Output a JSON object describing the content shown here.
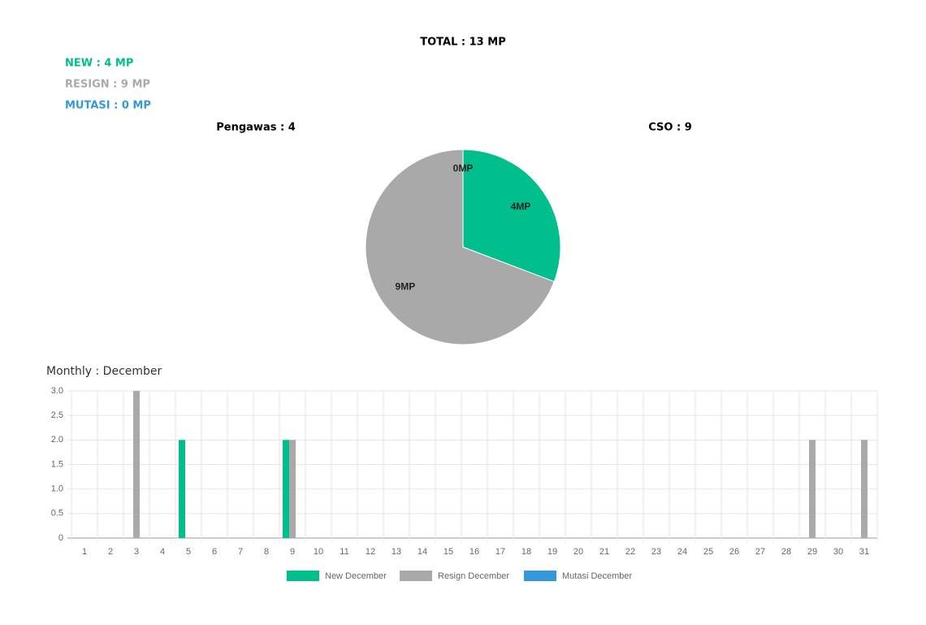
{
  "header": {
    "total": "TOTAL : 13 MP",
    "new": "NEW : 4 MP",
    "resign": "RESIGN : 9 MP",
    "mutasi": "MUTASI : 0 MP",
    "pengawas": "Pengawas : 4",
    "cso": "CSO : 9"
  },
  "chart_data": [
    {
      "type": "pie",
      "values": [
        4,
        9,
        0
      ],
      "value_labels": [
        "4MP",
        "9MP",
        "0MP"
      ],
      "colors": [
        "#00bf8c",
        "#a9a9a9",
        "#3498db"
      ]
    },
    {
      "type": "bar",
      "title": "Monthly : December",
      "categories": [
        "1",
        "2",
        "3",
        "4",
        "5",
        "6",
        "7",
        "8",
        "9",
        "10",
        "11",
        "12",
        "13",
        "14",
        "15",
        "16",
        "17",
        "18",
        "19",
        "20",
        "21",
        "22",
        "23",
        "24",
        "25",
        "26",
        "27",
        "28",
        "29",
        "30",
        "31"
      ],
      "series": [
        {
          "name": "New December",
          "color": "#00bf8c",
          "values": [
            0,
            0,
            0,
            0,
            2,
            0,
            0,
            0,
            2,
            0,
            0,
            0,
            0,
            0,
            0,
            0,
            0,
            0,
            0,
            0,
            0,
            0,
            0,
            0,
            0,
            0,
            0,
            0,
            0,
            0,
            0
          ]
        },
        {
          "name": "Resign December",
          "color": "#a9a9a9",
          "values": [
            0,
            0,
            3,
            0,
            0,
            0,
            0,
            0,
            2,
            0,
            0,
            0,
            0,
            0,
            0,
            0,
            0,
            0,
            0,
            0,
            0,
            0,
            0,
            0,
            0,
            0,
            0,
            0,
            2,
            0,
            2
          ]
        },
        {
          "name": "Mutasi December",
          "color": "#3498db",
          "values": [
            0,
            0,
            0,
            0,
            0,
            0,
            0,
            0,
            0,
            0,
            0,
            0,
            0,
            0,
            0,
            0,
            0,
            0,
            0,
            0,
            0,
            0,
            0,
            0,
            0,
            0,
            0,
            0,
            0,
            0,
            0
          ]
        }
      ],
      "ylim": [
        0,
        3
      ],
      "yticks": [
        0,
        0.5,
        {
          "value": 1,
          "label": "1.0"
        },
        1.5,
        {
          "value": 2,
          "label": "2.0"
        },
        2.5,
        {
          "value": 3,
          "label": "3.0"
        }
      ],
      "grid": true,
      "legend": "bottom"
    }
  ]
}
